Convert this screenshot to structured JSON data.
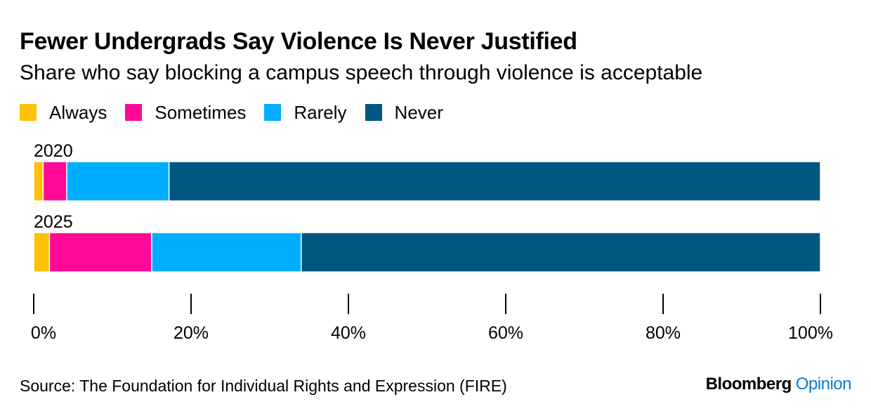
{
  "title": "Fewer Undergrads Say Violence Is Never Justified",
  "subtitle": "Share who say blocking a campus speech through violence is acceptable",
  "colors": {
    "always": "#FFC107",
    "sometimes": "#FF0A96",
    "rarely": "#00AEFF",
    "never": "#005780"
  },
  "legend": [
    {
      "label": "Always",
      "color": "#FFC107"
    },
    {
      "label": "Sometimes",
      "color": "#FF0A96"
    },
    {
      "label": "Rarely",
      "color": "#00AEFF"
    },
    {
      "label": "Never",
      "color": "#005780"
    }
  ],
  "chart_data": {
    "type": "bar",
    "orientation": "horizontal",
    "stacked": true,
    "categories": [
      "2020",
      "2025"
    ],
    "series": [
      {
        "name": "Always",
        "values": [
          1.2,
          2.0
        ]
      },
      {
        "name": "Sometimes",
        "values": [
          3.0,
          13.0
        ]
      },
      {
        "name": "Rarely",
        "values": [
          13.0,
          19.0
        ]
      },
      {
        "name": "Never",
        "values": [
          82.8,
          66.0
        ]
      }
    ],
    "xlim": [
      0,
      100
    ],
    "xticks": [
      "0%",
      "20%",
      "40%",
      "60%",
      "80%",
      "100%"
    ],
    "tick_values": [
      0,
      20,
      40,
      60,
      80,
      100
    ],
    "grid": false,
    "legend_position": "top-left"
  },
  "source": "Source: The Foundation for Individual Rights and Expression (FIRE)",
  "brand": {
    "primary": "Bloomberg",
    "secondary": "Opinion"
  }
}
